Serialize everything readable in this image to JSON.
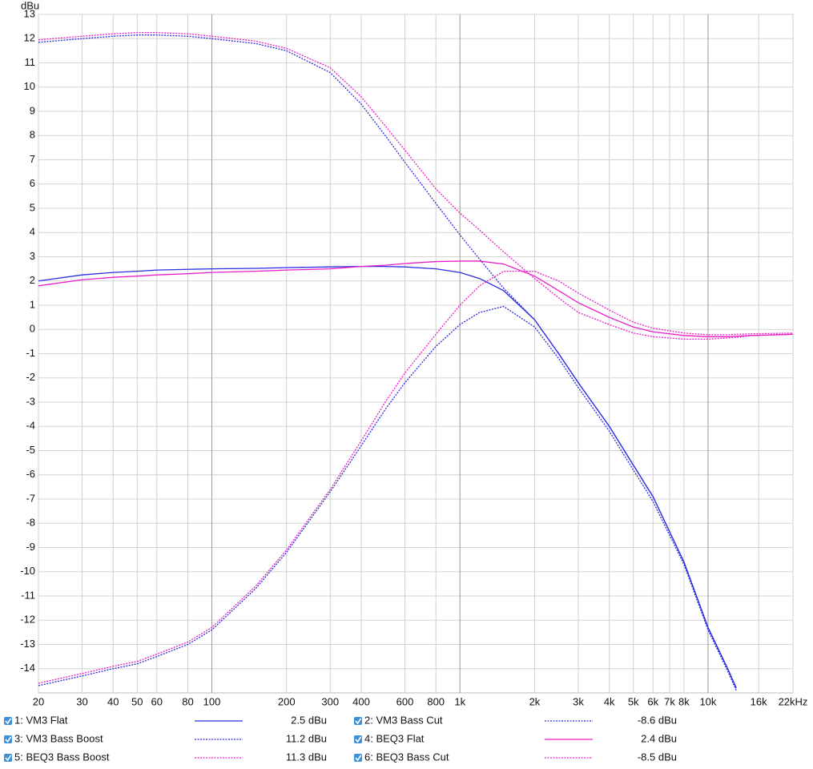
{
  "chart_data": {
    "type": "line",
    "xscale": "log",
    "y_label": "dBu",
    "grid": true,
    "x": [
      20,
      30,
      40,
      50,
      60,
      80,
      100,
      150,
      200,
      300,
      400,
      500,
      600,
      800,
      1000,
      1200,
      1500,
      2000,
      2500,
      3000,
      4000,
      5000,
      6000,
      8000,
      10000,
      12000,
      13000,
      15000,
      22000
    ],
    "xlim": [
      20,
      22000
    ],
    "xticks": [
      20,
      30,
      40,
      50,
      60,
      80,
      100,
      200,
      300,
      400,
      600,
      800,
      {
        "value": 1000,
        "label": "1k"
      },
      {
        "value": 2000,
        "label": "2k"
      },
      {
        "value": 3000,
        "label": "3k"
      },
      {
        "value": 4000,
        "label": "4k"
      },
      {
        "value": 5000,
        "label": "5k"
      },
      {
        "value": 6000,
        "label": "6k"
      },
      {
        "value": 7000,
        "label": "7k"
      },
      {
        "value": 8000,
        "label": "8k"
      },
      {
        "value": 10000,
        "label": "10k"
      },
      {
        "value": 16000,
        "label": "16k"
      },
      {
        "value": 22000,
        "label": "22kHz"
      }
    ],
    "ylim": [
      -15,
      13
    ],
    "yticks": [
      -14,
      -13,
      -12,
      -11,
      -10,
      -9,
      -8,
      -7,
      -6,
      -5,
      -4,
      -3,
      -2,
      -1,
      0,
      1,
      2,
      3,
      4,
      5,
      6,
      7,
      8,
      9,
      10,
      11,
      12,
      13
    ],
    "series": [
      {
        "name": "1: VM3 Flat",
        "color": "#2b2be0",
        "dashed": false,
        "readout": "2.5 dBu",
        "values": [
          2.0,
          2.25,
          2.35,
          2.4,
          2.45,
          2.48,
          2.5,
          2.52,
          2.55,
          2.58,
          2.6,
          2.6,
          2.58,
          2.5,
          2.35,
          2.1,
          1.6,
          0.4,
          -1.0,
          -2.2,
          -4.0,
          -5.6,
          -6.9,
          -9.6,
          -12.3,
          -14.0,
          -14.8,
          null,
          null
        ]
      },
      {
        "name": "2: VM3 Bass Cut",
        "color": "#2b2be0",
        "dashed": true,
        "readout": "-8.6 dBu",
        "values": [
          -14.7,
          -14.3,
          -14.0,
          -13.8,
          -13.5,
          -13.0,
          -12.4,
          -10.7,
          -9.2,
          -6.7,
          -4.8,
          -3.3,
          -2.2,
          -0.7,
          0.2,
          0.7,
          0.95,
          0.1,
          -1.2,
          -2.4,
          -4.2,
          -5.8,
          -7.1,
          -9.7,
          -12.4,
          -14.1,
          -14.9,
          null,
          null
        ]
      },
      {
        "name": "3: VM3 Bass Boost",
        "color": "#2b2be0",
        "dashed": true,
        "readout": "11.2 dBu",
        "values": [
          11.85,
          12.0,
          12.1,
          12.15,
          12.15,
          12.1,
          12.0,
          11.8,
          11.5,
          10.6,
          9.3,
          8.0,
          6.9,
          5.2,
          3.9,
          2.9,
          1.7,
          0.4,
          -1.0,
          -2.2,
          -4.0,
          -5.6,
          -6.9,
          -9.6,
          -12.3,
          -14.0,
          -14.8,
          null,
          null
        ]
      },
      {
        "name": "4: BEQ3 Flat",
        "color": "#ea1ec8",
        "dashed": false,
        "readout": "2.4 dBu",
        "values": [
          1.8,
          2.05,
          2.15,
          2.2,
          2.25,
          2.3,
          2.35,
          2.4,
          2.45,
          2.5,
          2.6,
          2.65,
          2.72,
          2.8,
          2.82,
          2.82,
          2.7,
          2.2,
          1.6,
          1.1,
          0.5,
          0.1,
          -0.1,
          -0.25,
          -0.3,
          -0.3,
          -0.28,
          -0.25,
          -0.2
        ]
      },
      {
        "name": "5: BEQ3 Bass Boost",
        "color": "#ea1ec8",
        "dashed": true,
        "readout": "11.3 dBu",
        "values": [
          11.95,
          12.1,
          12.2,
          12.25,
          12.25,
          12.2,
          12.1,
          11.9,
          11.6,
          10.8,
          9.6,
          8.4,
          7.4,
          5.8,
          4.8,
          4.1,
          3.2,
          2.1,
          1.3,
          0.7,
          0.2,
          -0.15,
          -0.3,
          -0.4,
          -0.4,
          -0.35,
          -0.33,
          -0.25,
          -0.2
        ]
      },
      {
        "name": "6: BEQ3 Bass Cut",
        "color": "#ea1ec8",
        "dashed": true,
        "readout": "-8.5 dBu",
        "values": [
          -14.6,
          -14.2,
          -13.9,
          -13.7,
          -13.4,
          -12.9,
          -12.3,
          -10.6,
          -9.1,
          -6.6,
          -4.6,
          -3.0,
          -1.8,
          -0.2,
          1.0,
          1.8,
          2.4,
          2.4,
          2.0,
          1.5,
          0.8,
          0.3,
          0.05,
          -0.15,
          -0.22,
          -0.22,
          -0.2,
          -0.18,
          -0.15
        ]
      }
    ]
  }
}
